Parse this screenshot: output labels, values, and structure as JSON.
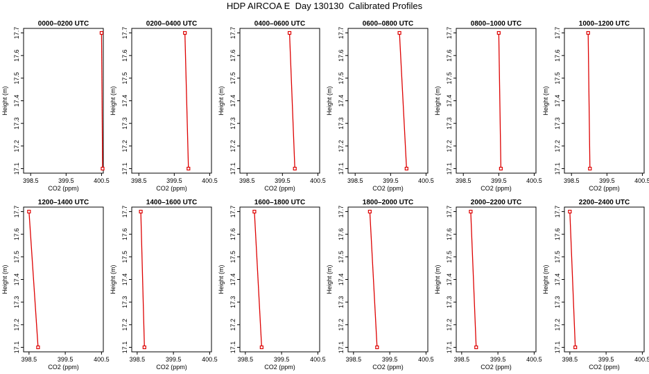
{
  "title": "HDP AIRCOA E  Day 130130  Calibrated Profiles",
  "colors": {
    "series": "#dd0000",
    "frame": "#000000",
    "background": "#ffffff"
  },
  "chart_data": [
    {
      "type": "line",
      "title": "0000–0200 UTC",
      "xlabel": "CO2 (ppm)",
      "ylabel": "Height (m)",
      "xlim": [
        398.3,
        400.55
      ],
      "ylim": [
        17.08,
        17.72
      ],
      "xticks": [
        "398.5",
        "399.5",
        "400.5"
      ],
      "yticks": [
        "17.1",
        "17.2",
        "17.3",
        "17.4",
        "17.5",
        "17.6",
        "17.7"
      ],
      "x": [
        400.5,
        400.53
      ],
      "y": [
        17.7,
        17.1
      ],
      "grid": false,
      "legend": "none"
    },
    {
      "type": "line",
      "title": "0200–0400 UTC",
      "xlabel": "CO2 (ppm)",
      "ylabel": "Height (m)",
      "xlim": [
        398.3,
        400.55
      ],
      "ylim": [
        17.08,
        17.72
      ],
      "xticks": [
        "398.5",
        "399.5",
        "400.5"
      ],
      "yticks": [
        "17.1",
        "17.2",
        "17.3",
        "17.4",
        "17.5",
        "17.6",
        "17.7"
      ],
      "x": [
        399.8,
        399.9
      ],
      "y": [
        17.7,
        17.1
      ],
      "grid": false,
      "legend": "none"
    },
    {
      "type": "line",
      "title": "0400–0600 UTC",
      "xlabel": "CO2 (ppm)",
      "ylabel": "Height (m)",
      "xlim": [
        398.3,
        400.55
      ],
      "ylim": [
        17.08,
        17.72
      ],
      "xticks": [
        "398.5",
        "399.5",
        "400.5"
      ],
      "yticks": [
        "17.1",
        "17.2",
        "17.3",
        "17.4",
        "17.5",
        "17.6",
        "17.7"
      ],
      "x": [
        399.7,
        399.85
      ],
      "y": [
        17.7,
        17.1
      ],
      "grid": false,
      "legend": "none"
    },
    {
      "type": "line",
      "title": "0600–0800 UTC",
      "xlabel": "CO2 (ppm)",
      "ylabel": "Height (m)",
      "xlim": [
        398.3,
        400.55
      ],
      "ylim": [
        17.08,
        17.72
      ],
      "xticks": [
        "398.5",
        "399.5",
        "400.5"
      ],
      "yticks": [
        "17.1",
        "17.2",
        "17.3",
        "17.4",
        "17.5",
        "17.6",
        "17.7"
      ],
      "x": [
        399.75,
        399.95
      ],
      "y": [
        17.7,
        17.1
      ],
      "grid": false,
      "legend": "none"
    },
    {
      "type": "line",
      "title": "0800–1000 UTC",
      "xlabel": "CO2 (ppm)",
      "ylabel": "Height (m)",
      "xlim": [
        398.3,
        400.55
      ],
      "ylim": [
        17.08,
        17.72
      ],
      "xticks": [
        "398.5",
        "399.5",
        "400.5"
      ],
      "yticks": [
        "17.1",
        "17.2",
        "17.3",
        "17.4",
        "17.5",
        "17.6",
        "17.7"
      ],
      "x": [
        399.5,
        399.56
      ],
      "y": [
        17.7,
        17.1
      ],
      "grid": false,
      "legend": "none"
    },
    {
      "type": "line",
      "title": "1000–1200 UTC",
      "xlabel": "CO2 (ppm)",
      "ylabel": "Height (m)",
      "xlim": [
        398.3,
        400.55
      ],
      "ylim": [
        17.08,
        17.72
      ],
      "xticks": [
        "398.5",
        "399.5",
        "400.5"
      ],
      "yticks": [
        "17.1",
        "17.2",
        "17.3",
        "17.4",
        "17.5",
        "17.6",
        "17.7"
      ],
      "x": [
        398.97,
        399.02
      ],
      "y": [
        17.7,
        17.1
      ],
      "grid": false,
      "legend": "none"
    },
    {
      "type": "line",
      "title": "1200–1400 UTC",
      "xlabel": "CO2 (ppm)",
      "ylabel": "Height (m)",
      "xlim": [
        398.35,
        400.55
      ],
      "ylim": [
        17.08,
        17.72
      ],
      "xticks": [
        "398.5",
        "399.5",
        "400.5"
      ],
      "yticks": [
        "17.1",
        "17.2",
        "17.3",
        "17.4",
        "17.5",
        "17.6",
        "17.7"
      ],
      "x": [
        398.5,
        398.75
      ],
      "y": [
        17.7,
        17.1
      ],
      "grid": false,
      "legend": "none"
    },
    {
      "type": "line",
      "title": "1400–1600 UTC",
      "xlabel": "CO2 (ppm)",
      "ylabel": "Height (m)",
      "xlim": [
        398.35,
        400.55
      ],
      "ylim": [
        17.08,
        17.72
      ],
      "xticks": [
        "398.5",
        "399.5",
        "400.5"
      ],
      "yticks": [
        "17.1",
        "17.2",
        "17.3",
        "17.4",
        "17.5",
        "17.6",
        "17.7"
      ],
      "x": [
        398.6,
        398.7
      ],
      "y": [
        17.7,
        17.1
      ],
      "grid": false,
      "legend": "none"
    },
    {
      "type": "line",
      "title": "1600–1800 UTC",
      "xlabel": "CO2 (ppm)",
      "ylabel": "Height (m)",
      "xlim": [
        398.35,
        400.55
      ],
      "ylim": [
        17.08,
        17.72
      ],
      "xticks": [
        "398.5",
        "399.5",
        "400.5"
      ],
      "yticks": [
        "17.1",
        "17.2",
        "17.3",
        "17.4",
        "17.5",
        "17.6",
        "17.7"
      ],
      "x": [
        398.75,
        398.95
      ],
      "y": [
        17.7,
        17.1
      ],
      "grid": false,
      "legend": "none"
    },
    {
      "type": "line",
      "title": "1800–2000 UTC",
      "xlabel": "CO2 (ppm)",
      "ylabel": "Height (m)",
      "xlim": [
        398.35,
        400.55
      ],
      "ylim": [
        17.08,
        17.72
      ],
      "xticks": [
        "398.5",
        "399.5",
        "400.5"
      ],
      "yticks": [
        "17.1",
        "17.2",
        "17.3",
        "17.4",
        "17.5",
        "17.6",
        "17.7"
      ],
      "x": [
        398.95,
        399.15
      ],
      "y": [
        17.7,
        17.1
      ],
      "grid": false,
      "legend": "none"
    },
    {
      "type": "line",
      "title": "2000–2200 UTC",
      "xlabel": "CO2 (ppm)",
      "ylabel": "Height (m)",
      "xlim": [
        398.35,
        400.55
      ],
      "ylim": [
        17.08,
        17.72
      ],
      "xticks": [
        "398.5",
        "399.5",
        "400.5"
      ],
      "yticks": [
        "17.1",
        "17.2",
        "17.3",
        "17.4",
        "17.5",
        "17.6",
        "17.7"
      ],
      "x": [
        398.75,
        398.9
      ],
      "y": [
        17.7,
        17.1
      ],
      "grid": false,
      "legend": "none"
    },
    {
      "type": "line",
      "title": "2200–2400 UTC",
      "xlabel": "CO2 (ppm)",
      "ylabel": "Height (m)",
      "xlim": [
        398.35,
        400.55
      ],
      "ylim": [
        17.08,
        17.72
      ],
      "xticks": [
        "398.5",
        "399.5",
        "400.5"
      ],
      "yticks": [
        "17.1",
        "17.2",
        "17.3",
        "17.4",
        "17.5",
        "17.6",
        "17.7"
      ],
      "x": [
        398.5,
        398.65
      ],
      "y": [
        17.7,
        17.1
      ],
      "grid": false,
      "legend": "none"
    }
  ]
}
